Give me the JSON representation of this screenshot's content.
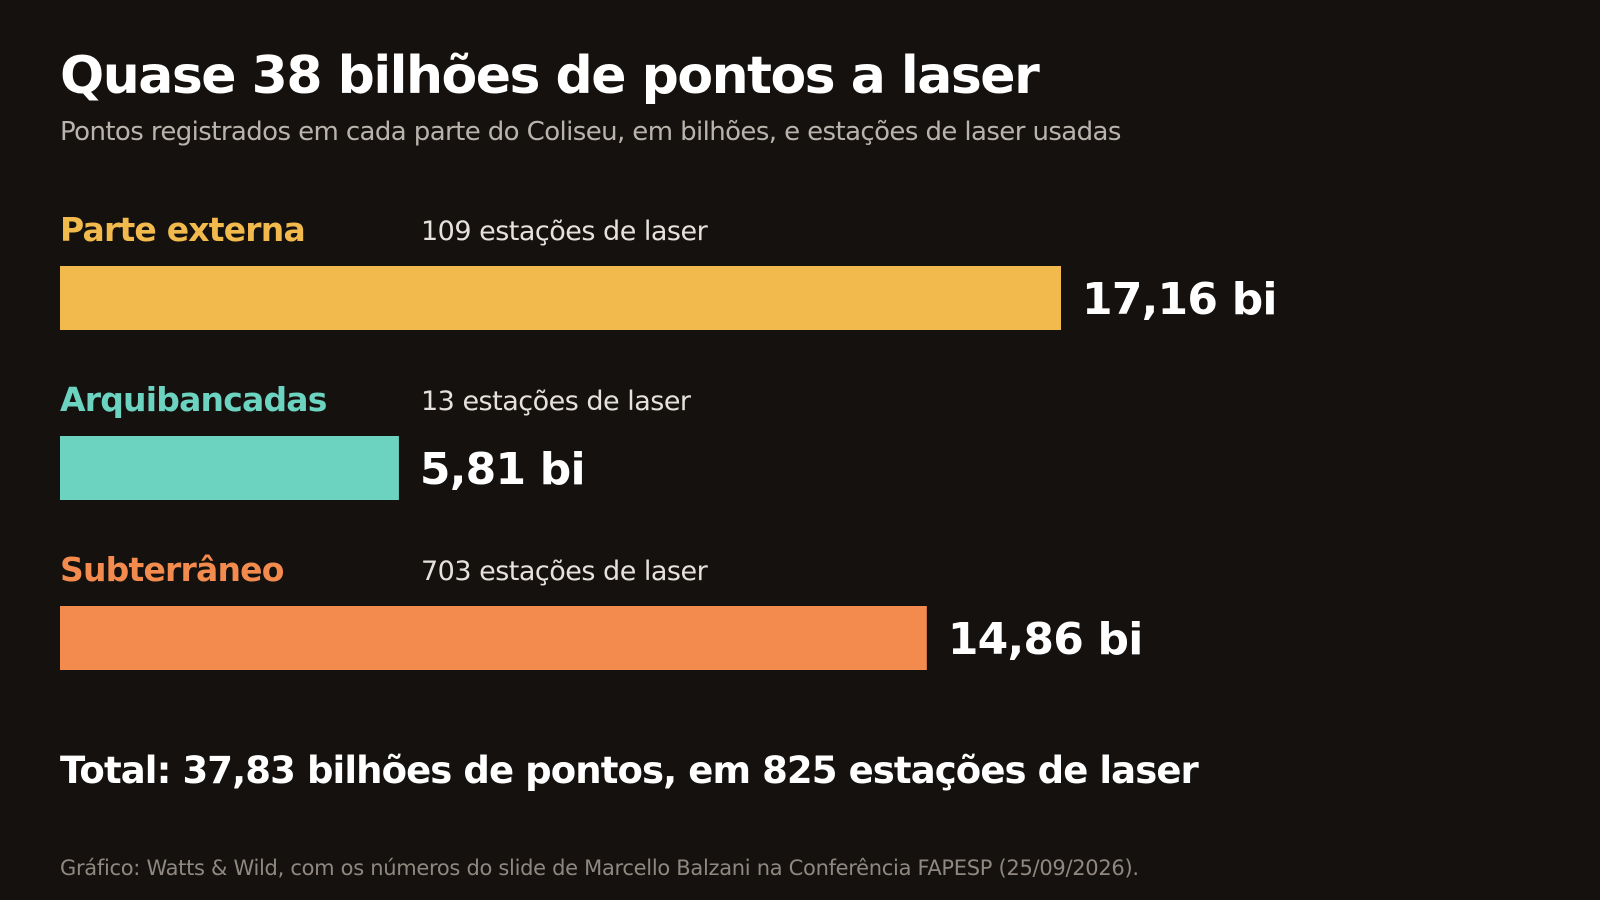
{
  "title": "Quase 38 bilhões de pontos a laser",
  "subtitle": "Pontos registrados em cada parte do Coliseu, em bilhões, e estações de laser usadas",
  "total": "Total: 37,83 bilhões de pontos, em 825 estações de laser",
  "source": "Gráfico: Watts & Wild, com os números do slide de Marcello Balzani na Conferência FAPESP (25/09/2026).",
  "colors": {
    "background": "#14110e",
    "parte_externa": "#f2b94c",
    "arquibancadas": "#6dd3c1",
    "subterraneo": "#f38b4e"
  },
  "chart_data": {
    "type": "bar",
    "orientation": "horizontal",
    "grid": false,
    "categories": [
      "Parte externa",
      "Arquibancadas",
      "Subterrâneo"
    ],
    "values": [
      17.16,
      5.81,
      14.86
    ],
    "value_labels": [
      "17,16 bi",
      "5,81 bi",
      "14,86 bi"
    ],
    "stations": [
      109,
      13,
      703
    ],
    "station_labels": [
      "109 estações de laser",
      "13 estações de laser",
      "703 estações de laser"
    ],
    "colors": [
      "#f2b94c",
      "#6dd3c1",
      "#f38b4e"
    ],
    "xlim": [
      0,
      17.16
    ]
  }
}
